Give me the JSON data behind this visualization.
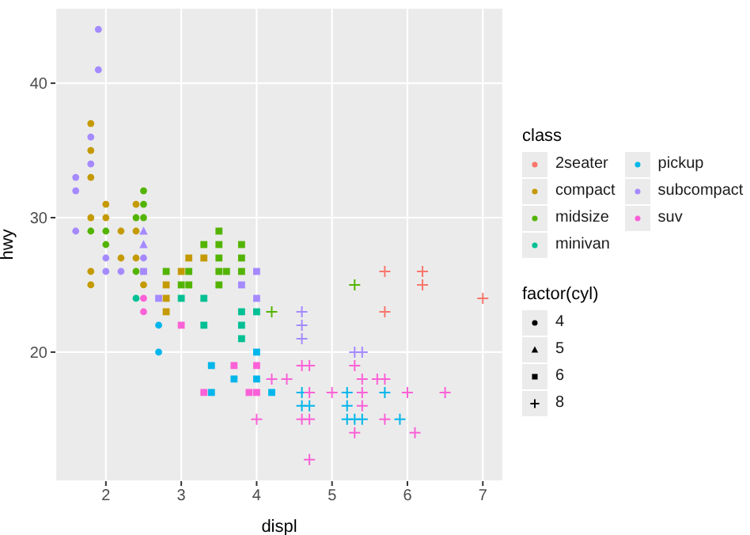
{
  "chart_data": {
    "type": "scatter",
    "xlabel": "displ",
    "ylabel": "hwy",
    "legend_title": "class",
    "legend": "right",
    "grid": true,
    "xlim": [
      1.33,
      7.27
    ],
    "xticks": [
      2,
      3,
      4,
      5,
      6,
      7
    ],
    "ylim": [
      10.4,
      45.6
    ],
    "yticks": [
      20,
      30,
      40
    ],
    "annotations": [
      "factor(cyl)",
      "4",
      "5",
      "6",
      "8"
    ],
    "series": [
      {
        "name": "2seater",
        "color": "#f8766d",
        "marker": "cross",
        "x": [
          5.7,
          6.2,
          6.2,
          7.0,
          5.7
        ],
        "values": [
          26,
          26,
          25,
          24,
          23
        ]
      },
      {
        "name": "compact",
        "color": "#c49a00",
        "marker": "circle",
        "x": [
          1.8,
          1.8,
          1.8,
          2.0,
          2.4,
          1.8,
          2.0,
          2.2,
          2.4,
          2.2,
          2.4,
          1.8,
          1.8,
          2.5
        ],
        "values": [
          37,
          35,
          33,
          31,
          31,
          30,
          30,
          29,
          29,
          27,
          27,
          26,
          25,
          25
        ]
      },
      {
        "color": "#c49a00",
        "marker": "square",
        "x": [
          3.1,
          3.3,
          3.0,
          2.8,
          2.8,
          2.8
        ],
        "values": [
          27,
          27,
          26,
          25,
          24,
          23
        ]
      },
      {
        "name": "midsize",
        "color": "#53b400",
        "marker": "circle",
        "x": [
          2.5,
          2.5,
          2.4,
          2.5,
          1.8,
          2.0,
          2.0,
          2.4
        ],
        "values": [
          32,
          31,
          30,
          30,
          29,
          29,
          28,
          26
        ]
      },
      {
        "color": "#53b400",
        "marker": "square",
        "x": [
          3.5,
          3.3,
          3.5,
          3.8,
          3.5,
          3.8,
          2.8,
          3.1,
          3.5,
          3.6,
          3.8,
          3.0,
          3.1,
          3.5
        ],
        "values": [
          29,
          28,
          28,
          28,
          27,
          27,
          26,
          26,
          26,
          26,
          26,
          25,
          25,
          25
        ]
      },
      {
        "color": "#53b400",
        "marker": "cross",
        "x": [
          5.3,
          4.2
        ],
        "values": [
          25,
          23
        ]
      },
      {
        "name": "minivan",
        "color": "#00c094",
        "marker": "circle",
        "x": [
          2.4
        ],
        "values": [
          24
        ]
      },
      {
        "color": "#00c094",
        "marker": "square",
        "x": [
          3.0,
          3.3,
          3.8,
          4.0,
          3.3,
          3.8,
          3.8
        ],
        "values": [
          24,
          24,
          23,
          23,
          22,
          22,
          21
        ]
      },
      {
        "name": "pickup",
        "color": "#00b6eb",
        "marker": "circle",
        "x": [
          2.7,
          2.7
        ],
        "values": [
          22,
          20
        ]
      },
      {
        "color": "#00b6eb",
        "marker": "square",
        "x": [
          4.0,
          3.4,
          3.7,
          4.0,
          3.4,
          4.2
        ],
        "values": [
          20,
          19,
          18,
          18,
          17,
          17
        ]
      },
      {
        "color": "#00b6eb",
        "marker": "cross",
        "x": [
          4.6,
          5.2,
          5.7,
          4.6,
          4.7,
          5.2,
          5.2,
          5.3,
          5.4,
          5.9
        ],
        "values": [
          17,
          17,
          17,
          16,
          16,
          16,
          15,
          15,
          15,
          15
        ]
      },
      {
        "name": "subcompact",
        "color": "#a58aff",
        "marker": "circle",
        "x": [
          1.9,
          1.9,
          1.8,
          1.8,
          1.6,
          1.6,
          1.6,
          2.0,
          2.5,
          2.0,
          2.2
        ],
        "values": [
          44,
          41,
          36,
          34,
          33,
          32,
          29,
          27,
          27,
          26,
          26
        ]
      },
      {
        "color": "#a58aff",
        "marker": "triangle",
        "x": [
          2.5,
          2.5
        ],
        "values": [
          29,
          28
        ]
      },
      {
        "color": "#a58aff",
        "marker": "square",
        "x": [
          2.5,
          2.7,
          3.8,
          4.0,
          4.0
        ],
        "values": [
          26,
          24,
          25,
          26,
          24
        ]
      },
      {
        "color": "#a58aff",
        "marker": "cross",
        "x": [
          4.6,
          4.6,
          4.6,
          5.3,
          5.4
        ],
        "values": [
          23,
          22,
          21,
          20,
          20
        ]
      },
      {
        "name": "suv",
        "color": "#fb61d7",
        "marker": "circle",
        "x": [
          2.5,
          2.5
        ],
        "values": [
          24,
          23
        ]
      },
      {
        "color": "#fb61d7",
        "marker": "square",
        "x": [
          3.0,
          3.7,
          4.0,
          3.3,
          3.9,
          4.0
        ],
        "values": [
          22,
          19,
          19,
          17,
          17,
          17
        ]
      },
      {
        "color": "#fb61d7",
        "marker": "cross",
        "x": [
          4.6,
          4.7,
          5.3,
          4.2,
          4.4,
          5.4,
          5.6,
          5.7,
          4.7,
          5.0,
          5.4,
          6.0,
          6.5,
          5.4,
          4.0,
          4.6,
          4.7,
          5.7,
          5.3,
          6.1,
          4.7
        ],
        "values": [
          19,
          19,
          19,
          18,
          18,
          18,
          18,
          18,
          17,
          17,
          17,
          17,
          17,
          16,
          15,
          15,
          15,
          15,
          14,
          14,
          12
        ]
      }
    ]
  }
}
